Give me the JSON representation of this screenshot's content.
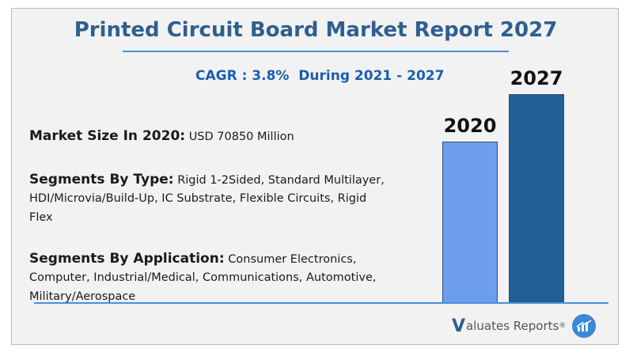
{
  "title": "Printed Circuit Board Market Report 2027",
  "cagr": "CAGR : 3.8%  During 2021 - 2027",
  "market_size": {
    "label": "Market Size In 2020:",
    "value": "USD 70850 Million"
  },
  "segments_type": {
    "label": "Segments By Type:",
    "lines": [
      "Rigid 1-2Sided, Standard Multilayer,",
      "HDI/Microvia/Build-Up, IC Substrate, Flexible Circuits, Rigid",
      "Flex"
    ]
  },
  "segments_application": {
    "label": "Segments By Application:",
    "lines": [
      "Consumer Electronics,",
      "Computer, Industrial/Medical, Communications, Automotive,",
      "Military/Aerospace"
    ]
  },
  "chart_data": {
    "type": "bar",
    "categories": [
      "2020",
      "2027"
    ],
    "values": [
      70850,
      91900
    ],
    "units": "USD Million",
    "colors": [
      "#6d9eeb",
      "#1f5f95"
    ],
    "ylim": [
      0,
      100000
    ],
    "grid": false
  },
  "logo": {
    "initial": "V",
    "text": "aluates Reports",
    "mark": "®"
  },
  "colors": {
    "title": "#2f5f8f",
    "cagr": "#1a5db0",
    "accent": "#4a90d9"
  }
}
